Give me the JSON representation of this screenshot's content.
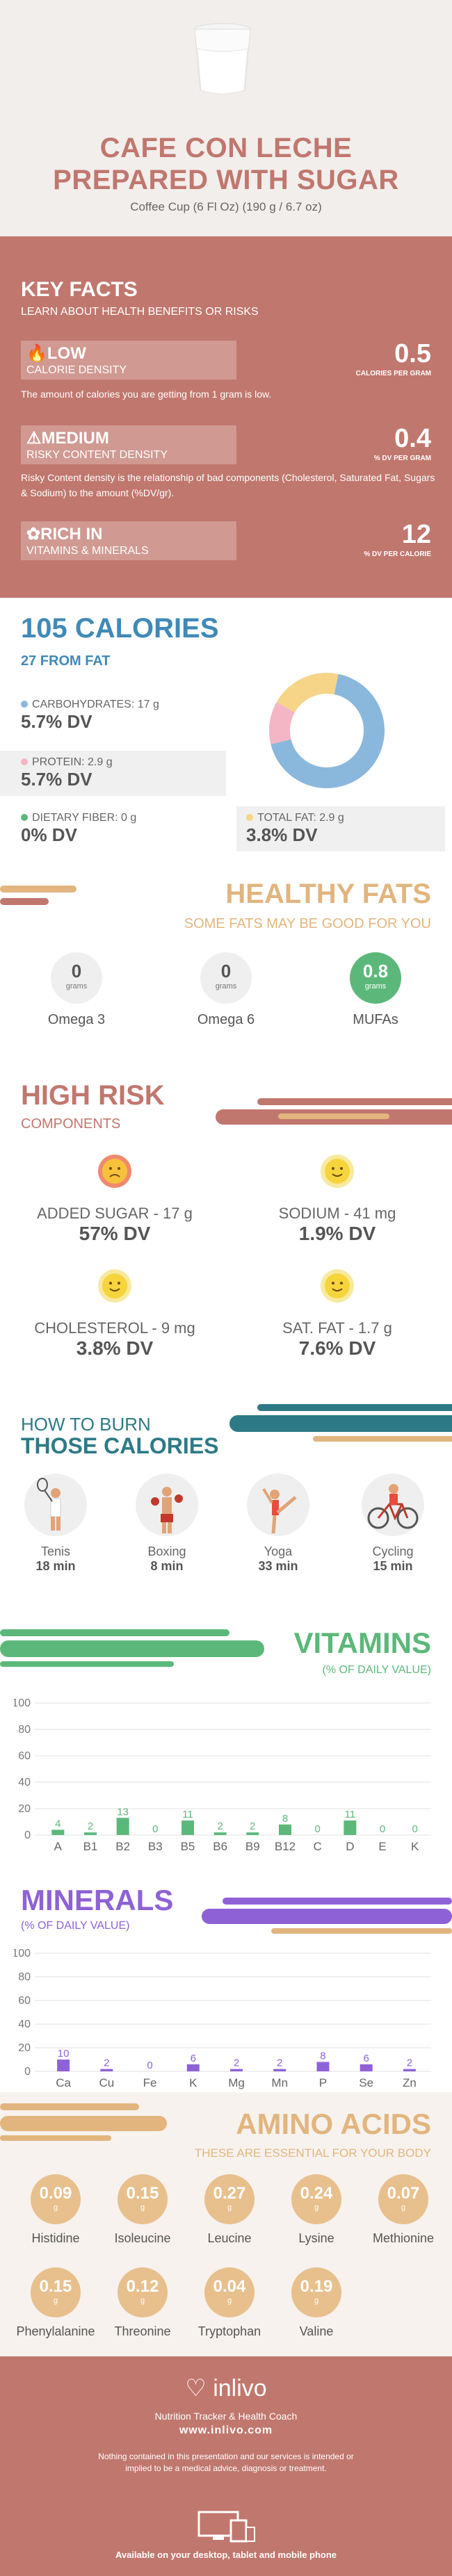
{
  "header": {
    "title_line1": "CAFE CON LECHE",
    "title_line2": "PREPARED WITH SUGAR",
    "serving": "Coffee Cup (6 Fl Oz) (190 g / 6.7 oz)"
  },
  "key_facts": {
    "title": "KEY FACTS",
    "subtitle": "LEARN ABOUT HEALTH BENEFITS OR RISKS",
    "items": [
      {
        "level": "LOW",
        "label": "CALORIE DENSITY",
        "value": "0.5",
        "unit": "CALORIES PER GRAM",
        "desc": "The amount of calories you are getting from 1 gram is low.",
        "icon": "flame-icon"
      },
      {
        "level": "MEDIUM",
        "label": "RISKY CONTENT DENSITY",
        "value": "0.4",
        "unit": "% DV PER GRAM",
        "desc": "Risky Content density is the relationship of bad components (Cholesterol, Saturated Fat, Sugars & Sodium) to the amount (%DV/gr).",
        "icon": "warning-icon"
      },
      {
        "level": "RICH IN",
        "label": "VITAMINS & MINERALS",
        "value": "12",
        "unit": "% DV PER CALORIE",
        "desc": "",
        "icon": "leaf-icon"
      }
    ]
  },
  "calories": {
    "title": "105 CALORIES",
    "from_fat": "27 FROM FAT",
    "nutrients": [
      {
        "label": "CARBOHYDRATES: 17 g",
        "dv": "5.7% DV",
        "color": "#8ab8dd"
      },
      {
        "label": "PROTEIN: 2.9 g",
        "dv": "5.7% DV",
        "color": "#f4b5c4"
      },
      {
        "label": "DIETARY FIBER: 0 g",
        "dv": "0% DV",
        "color": "#5cb87a"
      },
      {
        "label": "TOTAL FAT: 2.9 g",
        "dv": "3.8% DV",
        "color": "#f6d488"
      }
    ],
    "donut": [
      {
        "name": "carbs",
        "value": 68,
        "color": "#8ab8dd"
      },
      {
        "name": "protein",
        "value": 12,
        "color": "#f4b5c4"
      },
      {
        "name": "fat",
        "value": 20,
        "color": "#f6d488"
      }
    ]
  },
  "healthy_fats": {
    "title": "HEALTHY FATS",
    "subtitle": "SOME FATS MAY BE GOOD FOR YOU",
    "unit": "grams",
    "items": [
      {
        "name": "Omega 3",
        "value": "0",
        "highlight": false
      },
      {
        "name": "Omega 6",
        "value": "0",
        "highlight": false
      },
      {
        "name": "MUFAs",
        "value": "0.8",
        "highlight": true
      }
    ]
  },
  "high_risk": {
    "title": "HIGH RISK",
    "subtitle": "COMPONENTS",
    "items": [
      {
        "label": "ADDED SUGAR - 17 g",
        "dv": "57% DV",
        "face": "sad"
      },
      {
        "label": "SODIUM - 41 mg",
        "dv": "1.9% DV",
        "face": "happy"
      },
      {
        "label": "CHOLESTEROL - 9 mg",
        "dv": "3.8% DV",
        "face": "happy"
      },
      {
        "label": "SAT. FAT - 1.7 g",
        "dv": "7.6% DV",
        "face": "happy"
      }
    ]
  },
  "burn": {
    "title1": "HOW TO BURN",
    "title2": "THOSE CALORIES",
    "activities": [
      {
        "name": "Tenis",
        "minutes": "18 min",
        "icon": "tennis-icon"
      },
      {
        "name": "Boxing",
        "minutes": "8 min",
        "icon": "boxing-icon"
      },
      {
        "name": "Yoga",
        "minutes": "33 min",
        "icon": "yoga-icon"
      },
      {
        "name": "Cycling",
        "minutes": "15 min",
        "icon": "cycling-icon"
      }
    ]
  },
  "vitamins": {
    "title": "VITAMINS",
    "subtitle": "(% OF DAILY VALUE)"
  },
  "minerals": {
    "title": "MINERALS",
    "subtitle": "(% OF DAILY VALUE)"
  },
  "chart_data": [
    {
      "type": "bar",
      "title": "VITAMINS",
      "subtitle": "(% OF DAILY VALUE)",
      "categories": [
        "A",
        "B1",
        "B2",
        "B3",
        "B5",
        "B6",
        "B9",
        "B12",
        "C",
        "D",
        "E",
        "K"
      ],
      "values": [
        4,
        2,
        13,
        0,
        11,
        2,
        2,
        8,
        0,
        11,
        0,
        0
      ],
      "ylim": [
        0,
        100
      ],
      "yticks": [
        0,
        20,
        40,
        60,
        80,
        100
      ],
      "color": "#5cb87a"
    },
    {
      "type": "bar",
      "title": "MINERALS",
      "subtitle": "(% OF DAILY VALUE)",
      "categories": [
        "Ca",
        "Cu",
        "Fe",
        "K",
        "Mg",
        "Mn",
        "P",
        "Se",
        "Zn"
      ],
      "values": [
        10,
        2,
        0,
        6,
        2,
        2,
        8,
        6,
        2
      ],
      "ylim": [
        0,
        100
      ],
      "yticks": [
        0,
        20,
        40,
        60,
        80,
        100
      ],
      "color": "#8e62d6"
    }
  ],
  "amino": {
    "title": "AMINO ACIDS",
    "subtitle": "THESE ARE ESSENTIAL FOR YOUR BODY",
    "unit": "g",
    "items": [
      {
        "name": "Histidine",
        "value": "0.09"
      },
      {
        "name": "Isoleucine",
        "value": "0.15"
      },
      {
        "name": "Leucine",
        "value": "0.27"
      },
      {
        "name": "Lysine",
        "value": "0.24"
      },
      {
        "name": "Methionine",
        "value": "0.07"
      },
      {
        "name": "Phenylalanine",
        "value": "0.15"
      },
      {
        "name": "Threonine",
        "value": "0.12"
      },
      {
        "name": "Tryptophan",
        "value": "0.04"
      },
      {
        "name": "Valine",
        "value": "0.19"
      }
    ]
  },
  "footer": {
    "logo": "inlivo",
    "tagline": "Nutrition Tracker & Health Coach",
    "url": "www.inlivo.com",
    "disclaimer": "Nothing contained in this presentation and our services is intended or implied to be a medical advice, diagnosis or treatment.",
    "available": "Available on your desktop, tablet and mobile phone"
  }
}
